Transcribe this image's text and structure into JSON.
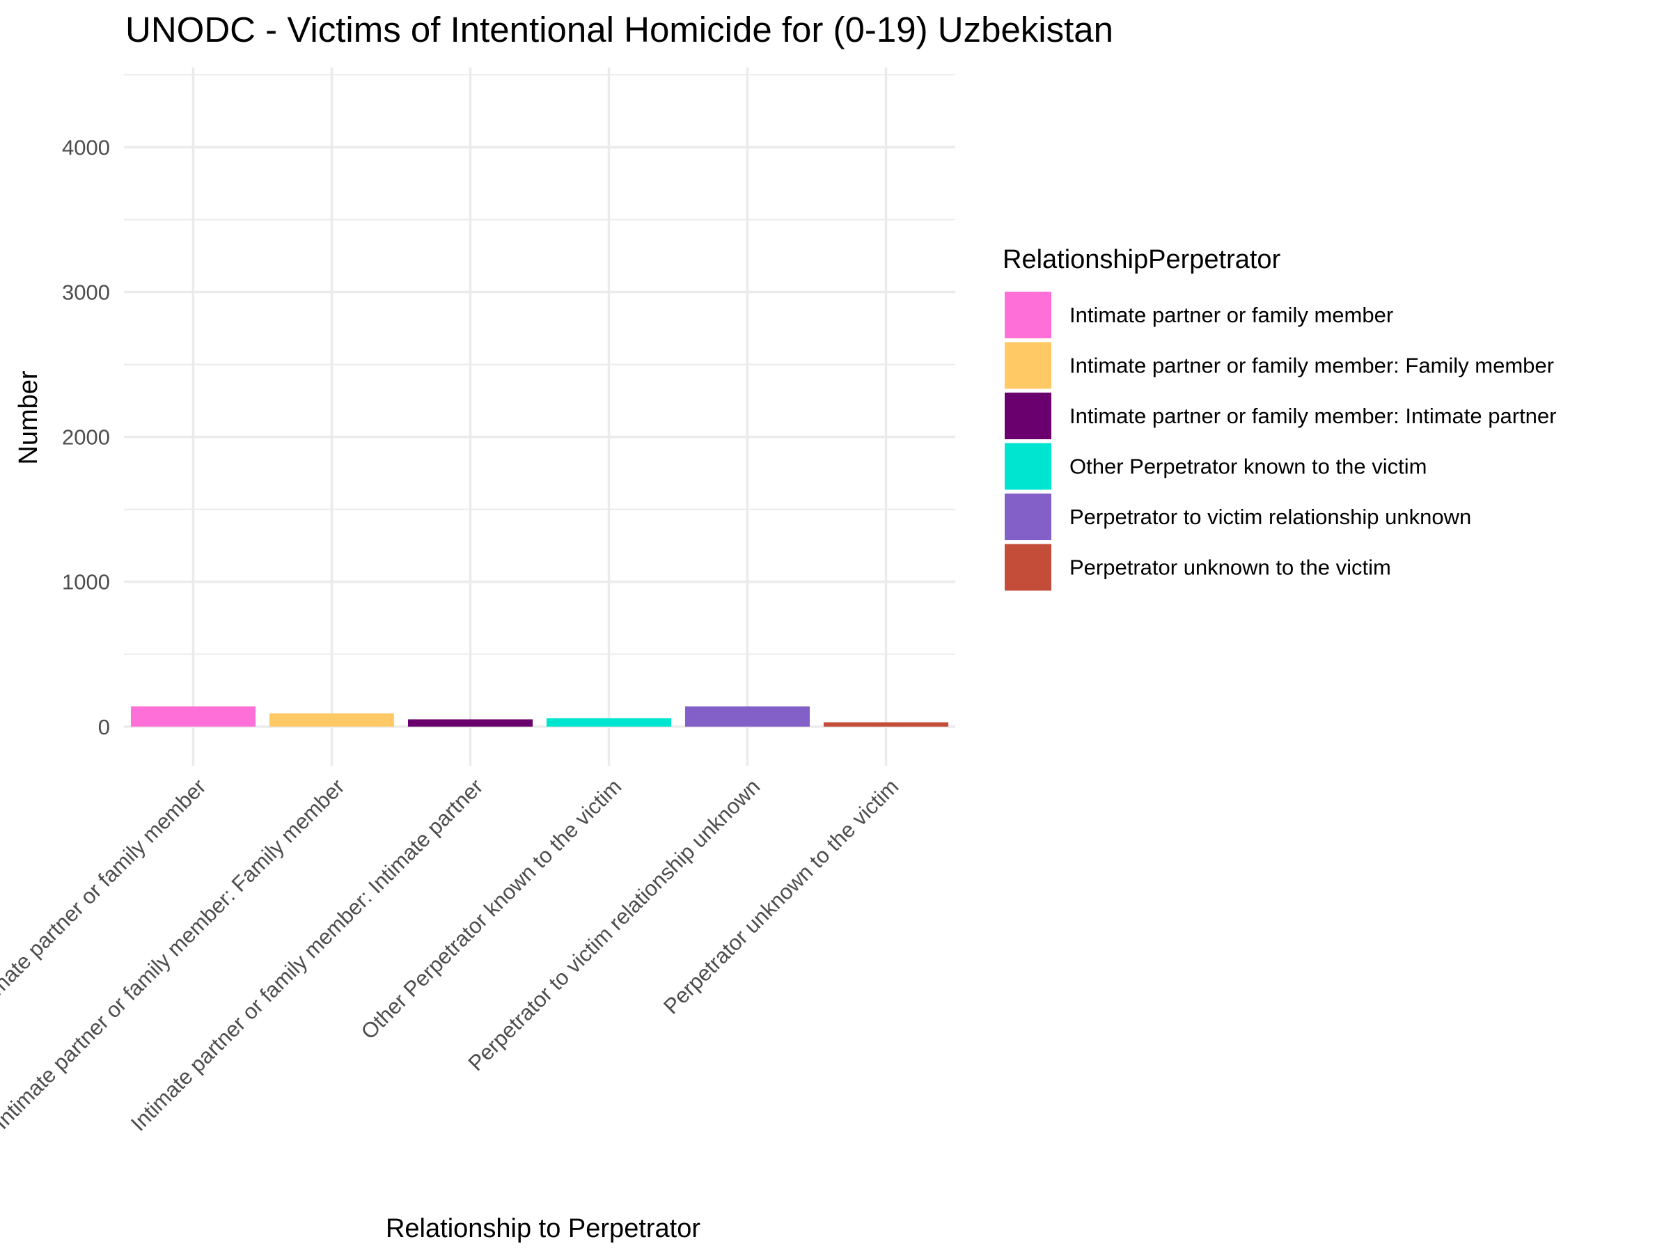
{
  "chart_data": {
    "type": "bar",
    "title": "UNODC - Victims of Intentional Homicide for (0-19) Uzbekistan",
    "xlabel": "Relationship to Perpetrator",
    "ylabel": "Number",
    "categories": [
      "Intimate partner or family member",
      "Intimate partner or family member: Family member",
      "Intimate partner or family member: Intimate partner",
      "Other Perpetrator known to the victim",
      "Perpetrator to victim relationship unknown",
      "Perpetrator unknown to the victim"
    ],
    "values": [
      140,
      92,
      50,
      58,
      140,
      30
    ],
    "colors": [
      "#FF6FD8",
      "#FFC966",
      "#6A006E",
      "#00E5D0",
      "#8360C7",
      "#C44D3A"
    ],
    "ylim": [
      -270,
      4550
    ],
    "yticks": [
      0,
      1000,
      2000,
      3000,
      4000
    ],
    "grid": true,
    "legend": {
      "title": "RelationshipPerpetrator",
      "position": "right"
    }
  }
}
